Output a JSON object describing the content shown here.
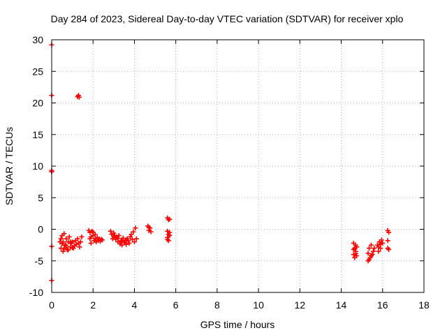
{
  "chart_data": {
    "type": "scatter",
    "title": "Day 284 of 2023, Sidereal Day-to-day VTEC variation (SDTVAR) for receiver xplo",
    "xlabel": "GPS time / hours",
    "ylabel": "SDTVAR / TECUs",
    "xlim": [
      0,
      18
    ],
    "ylim": [
      -10,
      30
    ],
    "xticks": [
      0,
      2,
      4,
      6,
      8,
      10,
      12,
      14,
      16,
      18
    ],
    "yticks": [
      -10,
      -5,
      0,
      5,
      10,
      15,
      20,
      25,
      30
    ],
    "grid": true,
    "marker": "+",
    "series": [
      {
        "name": "SDTVAR",
        "color": "#ff0000",
        "points": [
          [
            0.0,
            29.2
          ],
          [
            0.0,
            21.2
          ],
          [
            0.0,
            9.3
          ],
          [
            0.0,
            9.1
          ],
          [
            0.0,
            -2.7
          ],
          [
            0.0,
            -8.1
          ],
          [
            1.25,
            21.0
          ],
          [
            1.3,
            21.2
          ],
          [
            1.33,
            20.9
          ],
          [
            0.4,
            -2.0
          ],
          [
            0.45,
            -3.0
          ],
          [
            0.5,
            -1.0
          ],
          [
            0.55,
            -3.5
          ],
          [
            0.6,
            -0.7
          ],
          [
            0.65,
            -2.5
          ],
          [
            0.7,
            -1.5
          ],
          [
            0.75,
            -3.2
          ],
          [
            0.8,
            -2.0
          ],
          [
            0.85,
            -1.2
          ],
          [
            0.9,
            -2.8
          ],
          [
            0.95,
            -2.2
          ],
          [
            1.0,
            -2.0
          ],
          [
            1.05,
            -3.0
          ],
          [
            1.1,
            -2.6
          ],
          [
            1.15,
            -1.8
          ],
          [
            1.2,
            -2.4
          ],
          [
            1.25,
            -1.5
          ],
          [
            1.3,
            -2.2
          ],
          [
            1.35,
            -2.8
          ],
          [
            1.4,
            -2.0
          ],
          [
            1.45,
            -1.2
          ],
          [
            0.5,
            -2.3
          ],
          [
            0.6,
            -3.0
          ],
          [
            0.7,
            -2.6
          ],
          [
            0.8,
            -3.3
          ],
          [
            0.9,
            -2.0
          ],
          [
            1.0,
            -2.9
          ],
          [
            0.45,
            -1.5
          ],
          [
            0.55,
            -2.0
          ],
          [
            1.8,
            -0.2
          ],
          [
            1.85,
            -1.5
          ],
          [
            1.9,
            -2.2
          ],
          [
            1.95,
            -0.3
          ],
          [
            2.0,
            -1.0
          ],
          [
            2.05,
            -1.8
          ],
          [
            2.1,
            -0.8
          ],
          [
            2.15,
            -2.0
          ],
          [
            2.2,
            -1.3
          ],
          [
            2.25,
            -1.8
          ],
          [
            2.3,
            -1.5
          ],
          [
            2.35,
            -1.9
          ],
          [
            2.4,
            -1.6
          ],
          [
            2.45,
            -1.7
          ],
          [
            1.85,
            -0.5
          ],
          [
            1.9,
            -1.2
          ],
          [
            2.0,
            -0.5
          ],
          [
            2.1,
            -1.5
          ],
          [
            2.85,
            -0.3
          ],
          [
            2.9,
            -0.8
          ],
          [
            2.95,
            -1.5
          ],
          [
            3.0,
            -0.6
          ],
          [
            3.05,
            -1.0
          ],
          [
            3.1,
            -1.6
          ],
          [
            3.15,
            -1.2
          ],
          [
            3.2,
            -2.0
          ],
          [
            3.25,
            -1.0
          ],
          [
            3.3,
            -2.3
          ],
          [
            3.35,
            -1.8
          ],
          [
            3.4,
            -2.5
          ],
          [
            3.45,
            -1.4
          ],
          [
            3.5,
            -2.1
          ],
          [
            3.55,
            -1.9
          ],
          [
            3.6,
            -2.4
          ],
          [
            3.65,
            -1.5
          ],
          [
            3.7,
            -1.8
          ],
          [
            3.75,
            -2.2
          ],
          [
            3.8,
            -1.2
          ],
          [
            3.85,
            -0.8
          ],
          [
            3.9,
            -1.6
          ],
          [
            3.95,
            -0.4
          ],
          [
            4.0,
            -2.0
          ],
          [
            4.05,
            0.2
          ],
          [
            4.1,
            -1.5
          ],
          [
            3.0,
            -1.1
          ],
          [
            3.2,
            -1.5
          ],
          [
            3.4,
            -1.9
          ],
          [
            3.6,
            -1.7
          ],
          [
            4.65,
            0.5
          ],
          [
            4.7,
            -0.2
          ],
          [
            4.75,
            0.2
          ],
          [
            4.8,
            -0.4
          ],
          [
            4.7,
            0.3
          ],
          [
            5.6,
            1.8
          ],
          [
            5.65,
            1.5
          ],
          [
            5.7,
            1.6
          ],
          [
            5.6,
            -0.3
          ],
          [
            5.65,
            -0.8
          ],
          [
            5.6,
            -1.3
          ],
          [
            5.7,
            -1.0
          ],
          [
            5.65,
            -1.8
          ],
          [
            5.7,
            -0.5
          ],
          [
            5.6,
            -1.6
          ],
          [
            14.6,
            -2.2
          ],
          [
            14.65,
            -3.0
          ],
          [
            14.7,
            -3.5
          ],
          [
            14.6,
            -4.0
          ],
          [
            14.65,
            -4.5
          ],
          [
            14.7,
            -3.8
          ],
          [
            14.75,
            -2.8
          ],
          [
            14.7,
            -2.5
          ],
          [
            14.6,
            -3.2
          ],
          [
            14.75,
            -4.2
          ],
          [
            15.3,
            -5.0
          ],
          [
            15.35,
            -3.0
          ],
          [
            15.4,
            -4.5
          ],
          [
            15.45,
            -2.5
          ],
          [
            15.5,
            -4.0
          ],
          [
            15.55,
            -3.5
          ],
          [
            15.6,
            -3.0
          ],
          [
            15.35,
            -4.8
          ],
          [
            15.45,
            -4.2
          ],
          [
            15.3,
            -3.8
          ],
          [
            15.75,
            -2.5
          ],
          [
            15.8,
            -3.5
          ],
          [
            15.85,
            -2.0
          ],
          [
            15.9,
            -3.0
          ],
          [
            15.95,
            -1.7
          ],
          [
            16.0,
            -2.2
          ],
          [
            15.8,
            -2.8
          ],
          [
            15.9,
            -2.4
          ],
          [
            16.25,
            -0.2
          ],
          [
            16.3,
            -0.5
          ],
          [
            16.25,
            -1.8
          ],
          [
            16.3,
            -3.2
          ],
          [
            16.25,
            -3.0
          ]
        ]
      }
    ]
  }
}
